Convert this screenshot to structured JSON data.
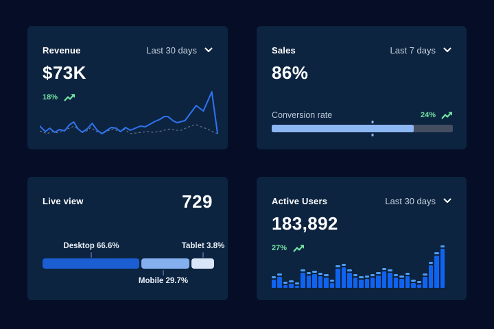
{
  "colors": {
    "page_bg": "#060d26",
    "card_bg": "#0c2440",
    "title": "#ffffff",
    "range_text": "#c7d1dd",
    "muted_text": "#b9c5d4",
    "green": "#74e3a4",
    "line_current": "#2f72f0",
    "line_previous": "#8a95a8",
    "bar_body": "#1063ef",
    "bar_cap": "#4f9df7",
    "progress_fill": "#8cb7f2",
    "progress_track": "#454e61",
    "segment_desktop": "#1a5ed2",
    "segment_mobile": "#84b0f0",
    "segment_tablet": "#d9e6f8",
    "tick": "#4c5a93"
  },
  "cards": {
    "revenue": {
      "title": "Revenue",
      "range": "Last 30 days",
      "value": "$73K",
      "trend": "18%"
    },
    "sales": {
      "title": "Sales",
      "range": "Last 7 days",
      "value": "86%",
      "metric_label": "Conversion rate",
      "trend": "24%",
      "progress_fill_pct": 78.5,
      "marker_pct": 55.5
    },
    "live_view": {
      "title": "Live view",
      "value": "729",
      "segments": [
        {
          "name": "desktop",
          "label": "Desktop 66.6%",
          "pct": 66.6,
          "visual_pct": 56.4,
          "tick_pct": 28.4,
          "label_side": "top"
        },
        {
          "name": "mobile",
          "label": "Mobile 29.7%",
          "pct": 29.7,
          "visual_pct": 28.0,
          "tick_pct": 70.4,
          "label_side": "bottom"
        },
        {
          "name": "tablet",
          "label": "Tablet 3.8%",
          "pct": 3.8,
          "visual_pct": 12.8,
          "tick_pct": 93.6,
          "label_side": "top"
        }
      ]
    },
    "active_users": {
      "title": "Active Users",
      "range": "Last 30 days",
      "value": "183,892",
      "trend": "27%"
    }
  },
  "chart_data": [
    {
      "id": "revenue_line",
      "type": "line",
      "title": "Revenue, last 30 days",
      "headline_value": "$73K",
      "trend_pct": 18,
      "axes": "none shown (sparkline)",
      "note": "points are [x,y] in a 252x74 viewBox, y measured from top (lower y = higher revenue), estimated from pixels",
      "series": [
        {
          "name": "current",
          "points": [
            [
              0,
              58
            ],
            [
              8,
              66
            ],
            [
              14,
              61
            ],
            [
              21,
              67
            ],
            [
              28,
              63
            ],
            [
              35,
              65
            ],
            [
              42,
              56
            ],
            [
              48,
              52
            ],
            [
              54,
              62
            ],
            [
              60,
              67
            ],
            [
              67,
              62
            ],
            [
              74,
              54
            ],
            [
              81,
              64
            ],
            [
              88,
              69
            ],
            [
              95,
              64
            ],
            [
              101,
              60
            ],
            [
              108,
              61
            ],
            [
              114,
              66
            ],
            [
              121,
              60
            ],
            [
              128,
              64
            ],
            [
              135,
              61
            ],
            [
              142,
              58
            ],
            [
              149,
              59
            ],
            [
              156,
              55
            ],
            [
              163,
              51
            ],
            [
              170,
              48
            ],
            [
              176,
              44
            ],
            [
              181,
              44
            ],
            [
              188,
              50
            ],
            [
              194,
              53
            ],
            [
              205,
              50
            ],
            [
              221,
              28
            ],
            [
              231,
              36
            ],
            [
              243,
              8
            ],
            [
              251,
              68
            ]
          ]
        },
        {
          "name": "previous",
          "points": [
            [
              0,
              65
            ],
            [
              10,
              69
            ],
            [
              18,
              66
            ],
            [
              26,
              68
            ],
            [
              34,
              64
            ],
            [
              42,
              61
            ],
            [
              48,
              58
            ],
            [
              56,
              64
            ],
            [
              64,
              67
            ],
            [
              72,
              60
            ],
            [
              80,
              66
            ],
            [
              88,
              69
            ],
            [
              96,
              65
            ],
            [
              104,
              62
            ],
            [
              112,
              66
            ],
            [
              120,
              63
            ],
            [
              128,
              69
            ],
            [
              136,
              68
            ],
            [
              144,
              67
            ],
            [
              152,
              66
            ],
            [
              160,
              67
            ],
            [
              168,
              66
            ],
            [
              176,
              64
            ],
            [
              184,
              62
            ],
            [
              192,
              64
            ],
            [
              200,
              64
            ],
            [
              208,
              60
            ],
            [
              216,
              57
            ],
            [
              221,
              56
            ],
            [
              228,
              59
            ],
            [
              236,
              62
            ],
            [
              244,
              66
            ],
            [
              251,
              69
            ]
          ]
        }
      ]
    },
    {
      "id": "sales_progress",
      "type": "bar",
      "title": "Conversion rate progress bar",
      "headline_value_pct": 86,
      "trend_pct": 24,
      "fill_visual_pct": 78.5,
      "marker_visual_pct": 55.5
    },
    {
      "id": "live_view_split",
      "type": "bar",
      "title": "Live view device split (%)",
      "headline_value": 729,
      "categories": [
        "Desktop",
        "Mobile",
        "Tablet"
      ],
      "values": [
        66.6,
        29.7,
        3.8
      ]
    },
    {
      "id": "active_users_bars",
      "type": "bar",
      "title": "Active users, last 30 days",
      "headline_value": "183,892",
      "trend_pct": 27,
      "unit": "bar heights in px, estimated from pixels (no axis shown)",
      "values": [
        17,
        21,
        9,
        11,
        8,
        27,
        23,
        25,
        22,
        20,
        12,
        33,
        35,
        27,
        20,
        17,
        18,
        20,
        23,
        29,
        27,
        20,
        18,
        22,
        12,
        10,
        21,
        38,
        52,
        62
      ]
    }
  ]
}
